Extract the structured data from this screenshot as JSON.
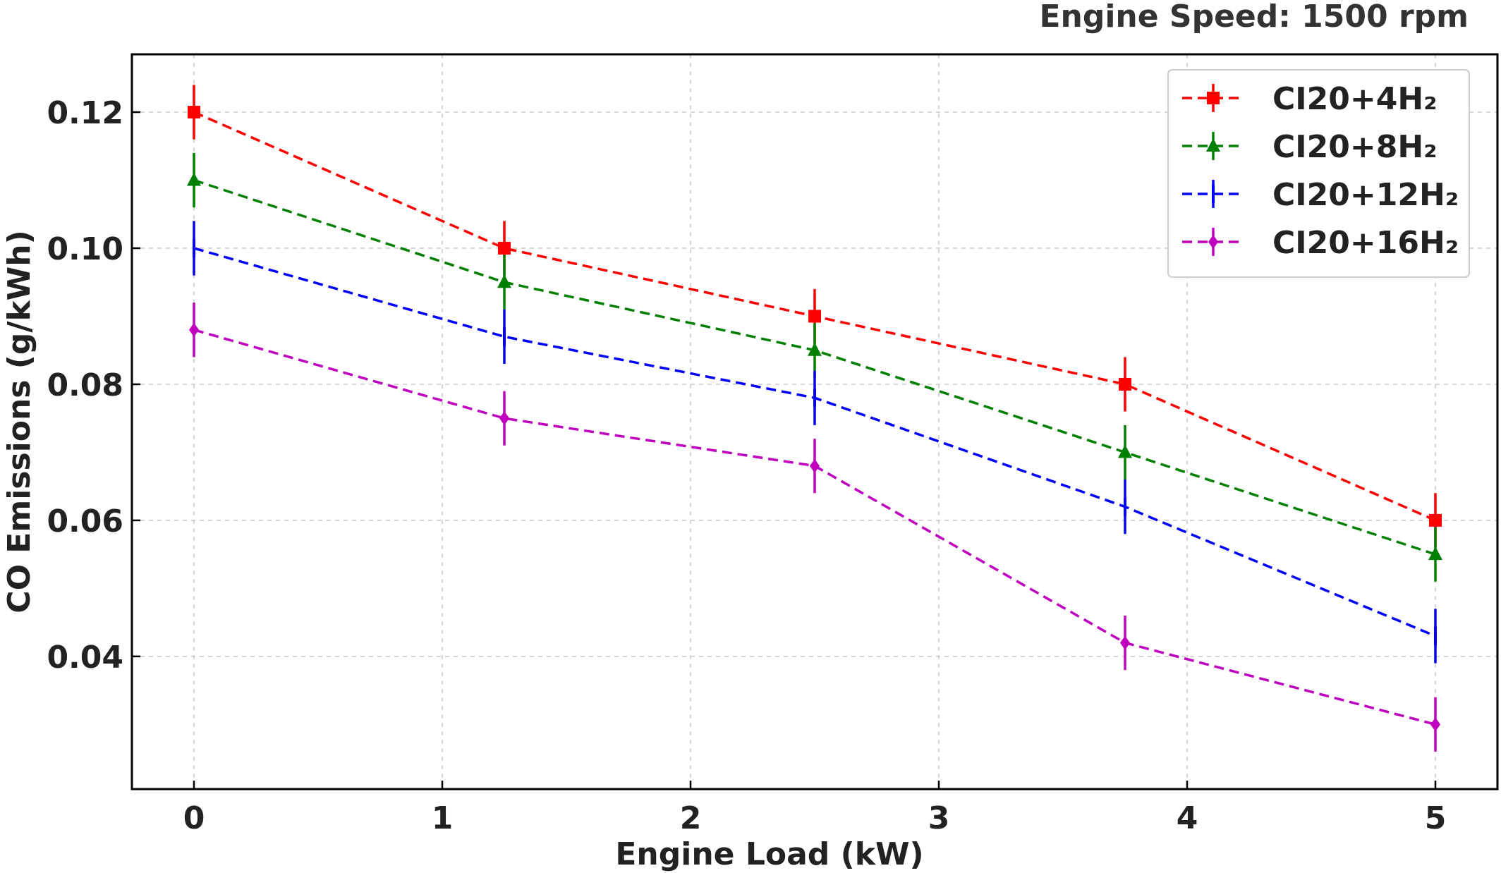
{
  "chart_data": {
    "type": "line",
    "annotation": "Engine Speed: 1500 rpm",
    "xlabel": "Engine Load (kW)",
    "ylabel": "CO Emissions (g/kWh)",
    "x": [
      0,
      1.25,
      2.5,
      3.75,
      5
    ],
    "xlim": [
      -0.25,
      5.25
    ],
    "ylim": [
      0.0205,
      0.1285
    ],
    "xticks": [
      0,
      1,
      2,
      3,
      4,
      5
    ],
    "xtick_labels": [
      "0",
      "1",
      "2",
      "3",
      "4",
      "5"
    ],
    "yticks": [
      0.04,
      0.06,
      0.08,
      0.1,
      0.12
    ],
    "ytick_labels": [
      "0.04",
      "0.06",
      "0.08",
      "0.10",
      "0.12"
    ],
    "grid": true,
    "legend_position": "top-right",
    "error_bar": 0.004,
    "series": [
      {
        "name": "CI20+4H₂",
        "color": "#ff0000",
        "marker": "square",
        "values": [
          0.12,
          0.1,
          0.09,
          0.08,
          0.06
        ]
      },
      {
        "name": "CI20+8H₂",
        "color": "#008000",
        "marker": "triangle",
        "values": [
          0.11,
          0.095,
          0.085,
          0.07,
          0.055
        ]
      },
      {
        "name": "CI20+12H₂",
        "color": "#0000ff",
        "marker": "vline",
        "values": [
          0.1,
          0.087,
          0.078,
          0.062,
          0.043
        ]
      },
      {
        "name": "CI20+16H₂",
        "color": "#bf00bf",
        "marker": "diamond",
        "values": [
          0.088,
          0.075,
          0.068,
          0.042,
          0.03
        ]
      }
    ]
  }
}
